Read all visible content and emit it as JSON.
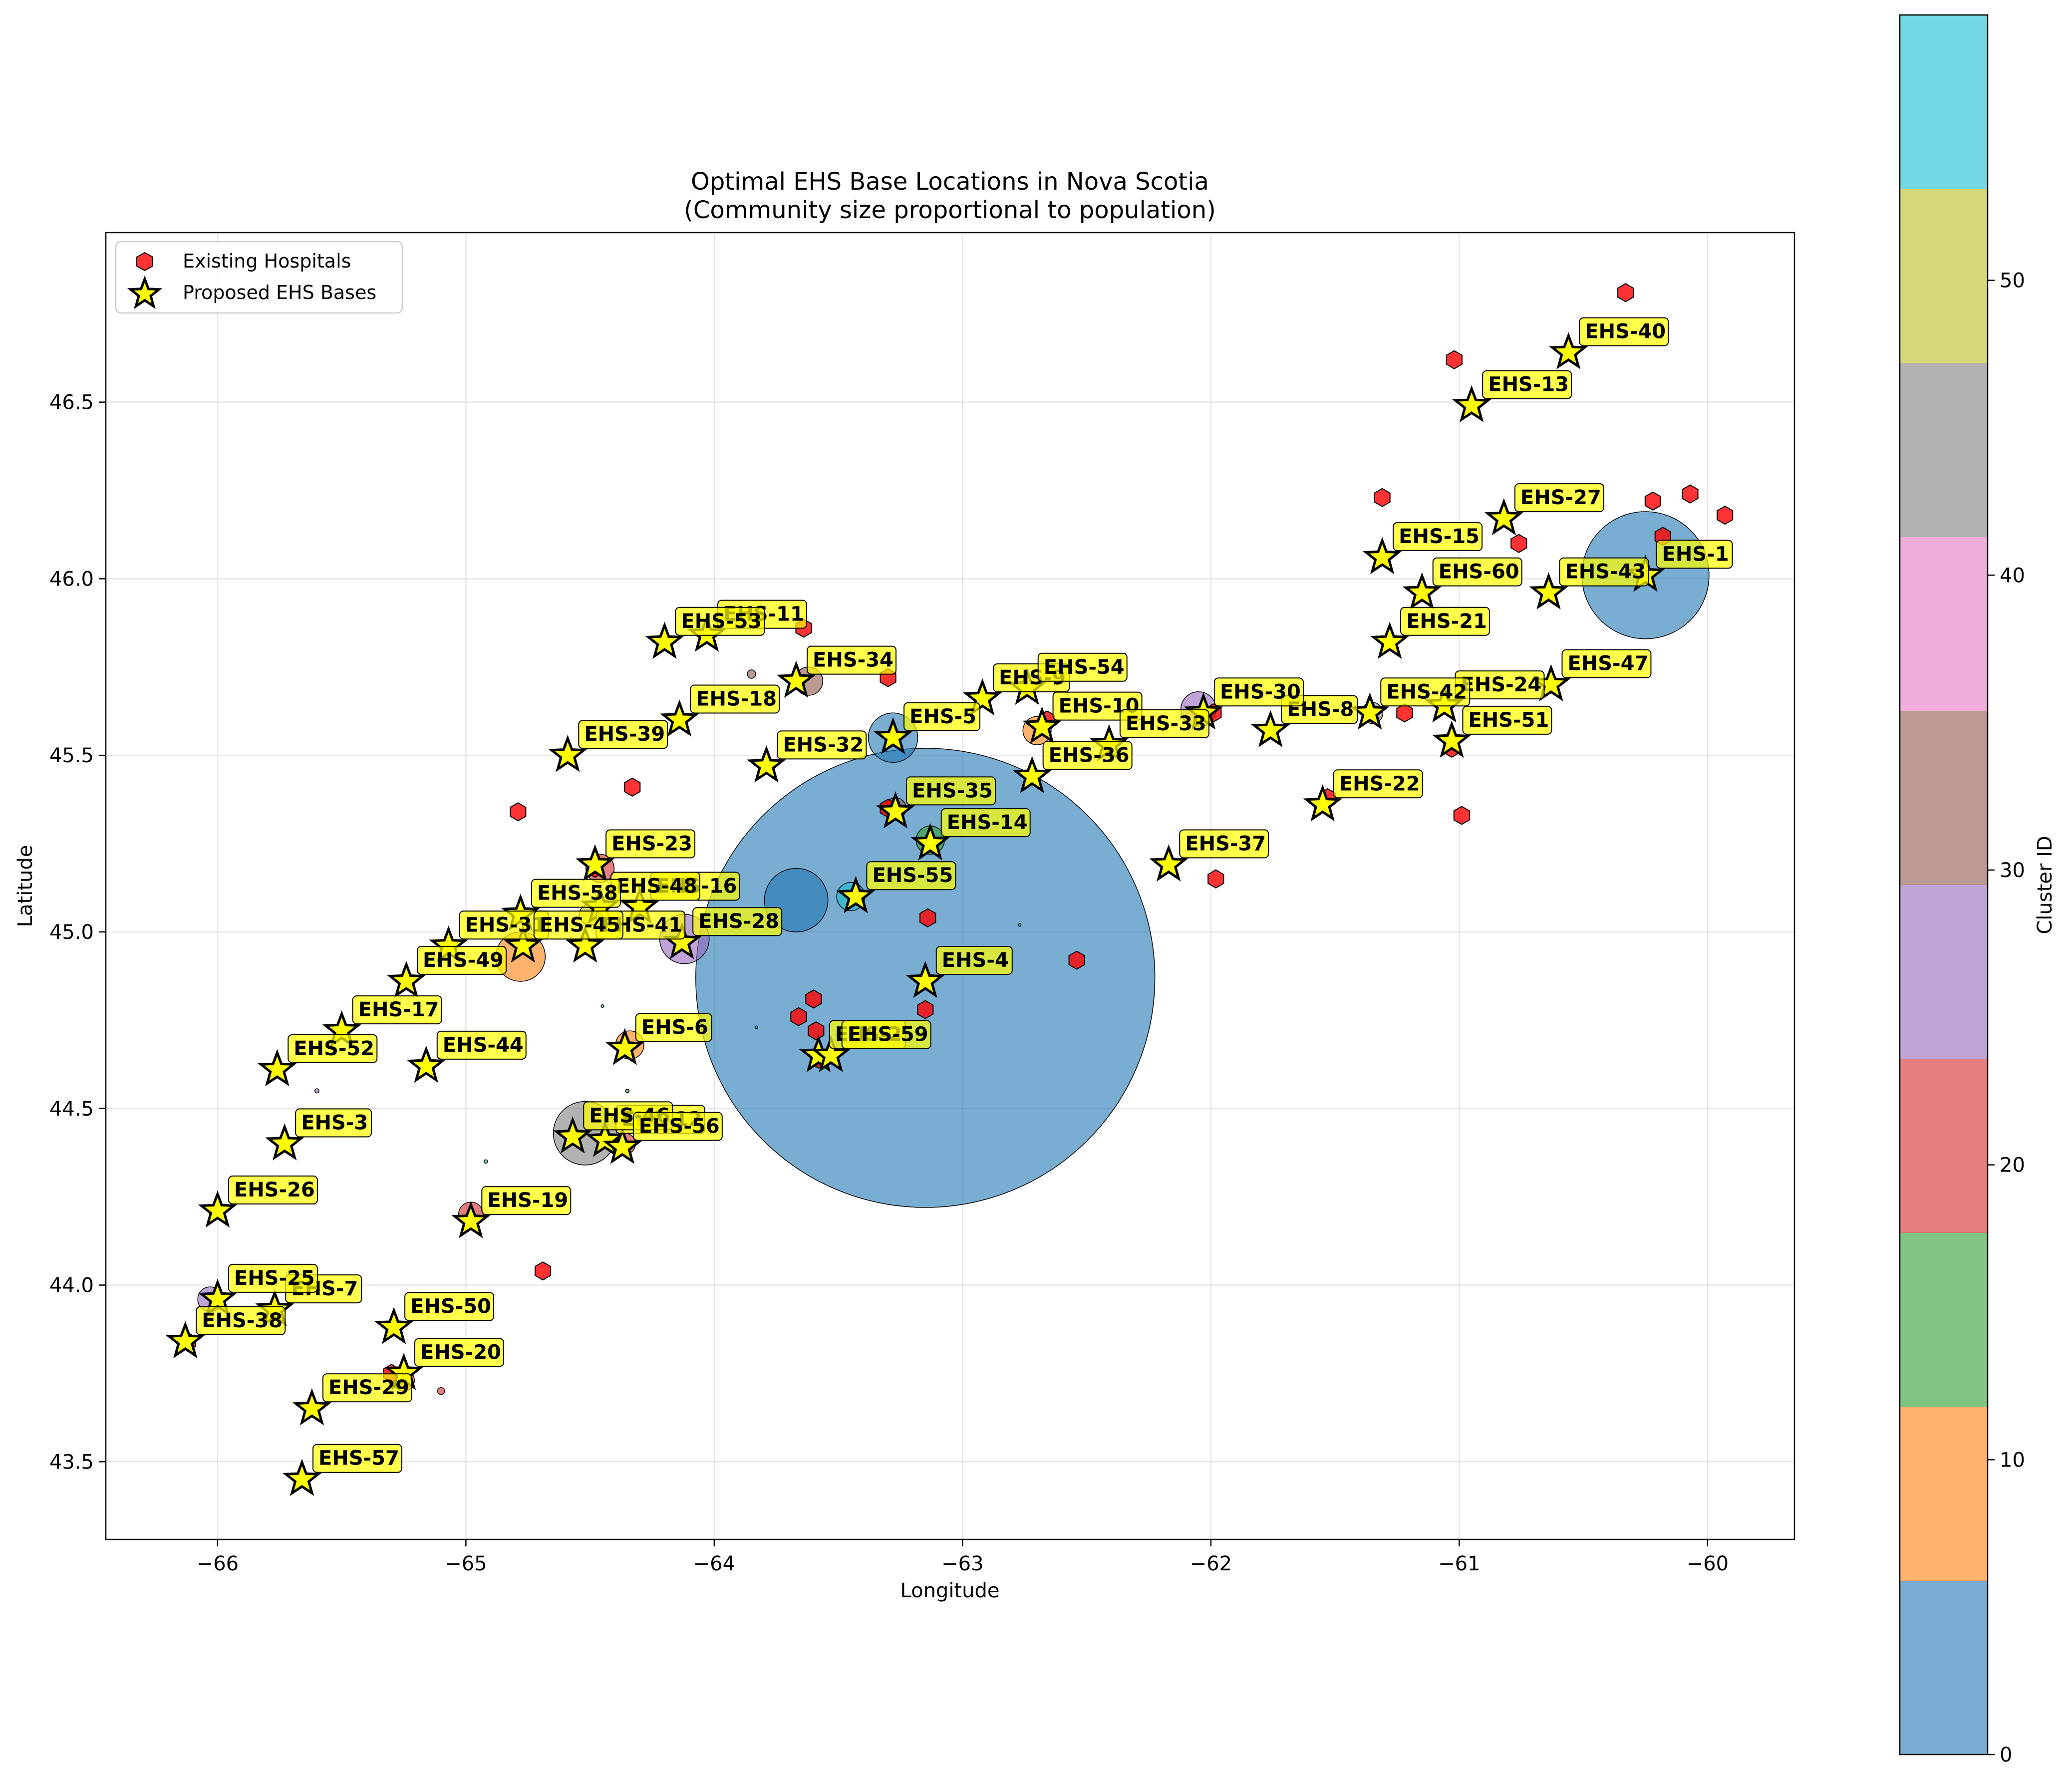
{
  "chart_data": {
    "type": "scatter",
    "title": "Optimal EHS Base Locations in Nova Scotia",
    "subtitle": "(Community size proportional to population)",
    "xlabel": "Longitude",
    "ylabel": "Latitude",
    "xlim": [
      -66.45,
      -59.65
    ],
    "ylim": [
      43.28,
      46.98
    ],
    "grid": true,
    "legend_position": "upper-left",
    "x_ticks": [
      {
        "value": -66,
        "label": "−66"
      },
      {
        "value": -65,
        "label": "−65"
      },
      {
        "value": -64,
        "label": "−64"
      },
      {
        "value": -63,
        "label": "−63"
      },
      {
        "value": -62,
        "label": "−62"
      },
      {
        "value": -61,
        "label": "−61"
      },
      {
        "value": -60,
        "label": "−60"
      }
    ],
    "y_ticks": [
      {
        "value": 43.5,
        "label": "43.5"
      },
      {
        "value": 44.0,
        "label": "44.0"
      },
      {
        "value": 44.5,
        "label": "44.5"
      },
      {
        "value": 45.0,
        "label": "45.0"
      },
      {
        "value": 45.5,
        "label": "45.5"
      },
      {
        "value": 46.0,
        "label": "46.0"
      },
      {
        "value": 46.5,
        "label": "46.5"
      }
    ],
    "legend": [
      {
        "label": "Existing Hospitals",
        "marker": "hexagon",
        "color": "#ff0000"
      },
      {
        "label": "Proposed EHS Bases",
        "marker": "star",
        "color": "#ffff00"
      }
    ],
    "colorbar": {
      "label": "Cluster ID",
      "min": 0,
      "max": 59,
      "ticks": [
        {
          "value": 0,
          "label": "0"
        },
        {
          "value": 10,
          "label": "10"
        },
        {
          "value": 20,
          "label": "20"
        },
        {
          "value": 30,
          "label": "30"
        },
        {
          "value": 40,
          "label": "40"
        },
        {
          "value": 50,
          "label": "50"
        }
      ],
      "colors": [
        "#1f77b4",
        "#ff7f0e",
        "#2ca02c",
        "#d62728",
        "#9467bd",
        "#8c564b",
        "#e377c2",
        "#7f7f7f",
        "#bcbd22",
        "#17becf"
      ],
      "alpha": 0.6
    },
    "communities": [
      {
        "lon": -63.15,
        "lat": 44.87,
        "r": 0.65,
        "cluster": 3
      },
      {
        "lon": -60.25,
        "lat": 46.01,
        "r": 0.18,
        "cluster": 0
      },
      {
        "lon": -63.67,
        "lat": 45.09,
        "r": 0.09,
        "cluster": 4
      },
      {
        "lon": -64.52,
        "lat": 44.43,
        "r": 0.09,
        "cluster": 44
      },
      {
        "lon": -64.12,
        "lat": 44.98,
        "r": 0.07,
        "cluster": 25
      },
      {
        "lon": -64.78,
        "lat": 44.93,
        "r": 0.07,
        "cluster": 9
      },
      {
        "lon": -63.28,
        "lat": 45.55,
        "r": 0.07,
        "cluster": 5
      },
      {
        "lon": -62.05,
        "lat": 45.63,
        "r": 0.05,
        "cluster": 28
      },
      {
        "lon": -63.62,
        "lat": 45.71,
        "r": 0.04,
        "cluster": 33
      },
      {
        "lon": -63.45,
        "lat": 45.1,
        "r": 0.04,
        "cluster": 55
      },
      {
        "lon": -63.13,
        "lat": 45.26,
        "r": 0.04,
        "cluster": 14
      },
      {
        "lon": -64.34,
        "lat": 44.68,
        "r": 0.04,
        "cluster": 6
      },
      {
        "lon": -62.7,
        "lat": 45.57,
        "r": 0.04,
        "cluster": 10
      },
      {
        "lon": -64.46,
        "lat": 45.18,
        "r": 0.04,
        "cluster": 23
      },
      {
        "lon": -64.98,
        "lat": 44.2,
        "r": 0.035,
        "cluster": 19
      },
      {
        "lon": -66.03,
        "lat": 43.96,
        "r": 0.035,
        "cluster": 25
      },
      {
        "lon": -63.27,
        "lat": 45.35,
        "r": 0.03,
        "cluster": 35
      },
      {
        "lon": -64.5,
        "lat": 45.05,
        "r": 0.03,
        "cluster": 48
      },
      {
        "lon": -64.36,
        "lat": 44.4,
        "r": 0.03,
        "cluster": 21
      },
      {
        "lon": -61.35,
        "lat": 45.62,
        "r": 0.03,
        "cluster": 42
      },
      {
        "lon": -65.25,
        "lat": 43.73,
        "r": 0.03,
        "cluster": 20
      },
      {
        "lon": -63.85,
        "lat": 45.73,
        "r": 0.012,
        "cluster": 30
      },
      {
        "lon": -65.1,
        "lat": 43.7,
        "r": 0.01,
        "cluster": 20
      },
      {
        "lon": -65.6,
        "lat": 44.55,
        "r": 0.006,
        "cluster": 28
      },
      {
        "lon": -64.92,
        "lat": 44.35,
        "r": 0.005,
        "cluster": 58
      },
      {
        "lon": -64.35,
        "lat": 44.55,
        "r": 0.005,
        "cluster": 14
      },
      {
        "lon": -63.83,
        "lat": 44.73,
        "r": 0.004,
        "cluster": 58
      },
      {
        "lon": -64.45,
        "lat": 44.79,
        "r": 0.004,
        "cluster": 58
      },
      {
        "lon": -62.77,
        "lat": 45.02,
        "r": 0.004,
        "cluster": 58
      }
    ],
    "hospitals": [
      {
        "lon": -60.33,
        "lat": 46.81
      },
      {
        "lon": -61.02,
        "lat": 46.62
      },
      {
        "lon": -61.31,
        "lat": 46.23
      },
      {
        "lon": -60.22,
        "lat": 46.22
      },
      {
        "lon": -60.07,
        "lat": 46.24
      },
      {
        "lon": -59.93,
        "lat": 46.18
      },
      {
        "lon": -60.76,
        "lat": 46.1
      },
      {
        "lon": -60.18,
        "lat": 46.12
      },
      {
        "lon": -63.64,
        "lat": 45.86
      },
      {
        "lon": -63.3,
        "lat": 45.72
      },
      {
        "lon": -61.22,
        "lat": 45.62
      },
      {
        "lon": -61.03,
        "lat": 45.52
      },
      {
        "lon": -60.99,
        "lat": 45.33
      },
      {
        "lon": -61.99,
        "lat": 45.62
      },
      {
        "lon": -62.66,
        "lat": 45.6
      },
      {
        "lon": -61.53,
        "lat": 45.38
      },
      {
        "lon": -64.79,
        "lat": 45.34
      },
      {
        "lon": -64.33,
        "lat": 45.41
      },
      {
        "lon": -63.3,
        "lat": 45.35
      },
      {
        "lon": -61.98,
        "lat": 45.15
      },
      {
        "lon": -63.14,
        "lat": 45.04
      },
      {
        "lon": -62.54,
        "lat": 44.92
      },
      {
        "lon": -63.6,
        "lat": 44.81
      },
      {
        "lon": -63.66,
        "lat": 44.76
      },
      {
        "lon": -63.59,
        "lat": 44.72
      },
      {
        "lon": -63.15,
        "lat": 44.78
      },
      {
        "lon": -63.58,
        "lat": 44.64
      },
      {
        "lon": -64.48,
        "lat": 45.18
      },
      {
        "lon": -64.69,
        "lat": 44.04
      },
      {
        "lon": -66.12,
        "lat": 43.84
      },
      {
        "lon": -65.3,
        "lat": 43.75
      }
    ],
    "bases": [
      {
        "label": "EHS-1",
        "lon": -60.25,
        "lat": 46.01
      },
      {
        "label": "EHS-2",
        "lon": -63.58,
        "lat": 44.65
      },
      {
        "label": "EHS-3",
        "lon": -65.73,
        "lat": 44.4
      },
      {
        "label": "EHS-4",
        "lon": -63.15,
        "lat": 44.86
      },
      {
        "label": "EHS-5",
        "lon": -63.28,
        "lat": 45.55
      },
      {
        "label": "EHS-6",
        "lon": -64.36,
        "lat": 44.67
      },
      {
        "label": "EHS-7",
        "lon": -65.77,
        "lat": 43.93
      },
      {
        "label": "EHS-8",
        "lon": -61.76,
        "lat": 45.57
      },
      {
        "label": "EHS-9",
        "lon": -62.92,
        "lat": 45.66
      },
      {
        "label": "EHS-10",
        "lon": -62.68,
        "lat": 45.58
      },
      {
        "label": "EHS-11",
        "lon": -64.03,
        "lat": 45.84
      },
      {
        "label": "EHS-12",
        "lon": -64.44,
        "lat": 44.41
      },
      {
        "label": "EHS-13",
        "lon": -60.95,
        "lat": 46.49
      },
      {
        "label": "EHS-14",
        "lon": -63.13,
        "lat": 45.25
      },
      {
        "label": "EHS-15",
        "lon": -61.31,
        "lat": 46.06
      },
      {
        "label": "EHS-16",
        "lon": -64.3,
        "lat": 45.07
      },
      {
        "label": "EHS-17",
        "lon": -65.5,
        "lat": 44.72
      },
      {
        "label": "EHS-18",
        "lon": -64.14,
        "lat": 45.6
      },
      {
        "label": "EHS-19",
        "lon": -64.98,
        "lat": 44.18
      },
      {
        "label": "EHS-20",
        "lon": -65.25,
        "lat": 43.75
      },
      {
        "label": "EHS-21",
        "lon": -61.28,
        "lat": 45.82
      },
      {
        "label": "EHS-22",
        "lon": -61.55,
        "lat": 45.36
      },
      {
        "label": "EHS-23",
        "lon": -64.48,
        "lat": 45.19
      },
      {
        "label": "EHS-24",
        "lon": -61.06,
        "lat": 45.64
      },
      {
        "label": "EHS-25",
        "lon": -66.0,
        "lat": 43.96
      },
      {
        "label": "EHS-26",
        "lon": -66.0,
        "lat": 44.21
      },
      {
        "label": "EHS-27",
        "lon": -60.82,
        "lat": 46.17
      },
      {
        "label": "EHS-28",
        "lon": -64.13,
        "lat": 44.97
      },
      {
        "label": "EHS-29",
        "lon": -65.62,
        "lat": 43.65
      },
      {
        "label": "EHS-30",
        "lon": -62.03,
        "lat": 45.62
      },
      {
        "label": "EHS-31",
        "lon": -65.07,
        "lat": 44.96
      },
      {
        "label": "EHS-32",
        "lon": -63.79,
        "lat": 45.47
      },
      {
        "label": "EHS-33",
        "lon": -62.41,
        "lat": 45.53
      },
      {
        "label": "EHS-34",
        "lon": -63.67,
        "lat": 45.71
      },
      {
        "label": "EHS-35",
        "lon": -63.27,
        "lat": 45.34
      },
      {
        "label": "EHS-36",
        "lon": -62.72,
        "lat": 45.44
      },
      {
        "label": "EHS-37",
        "lon": -62.17,
        "lat": 45.19
      },
      {
        "label": "EHS-38",
        "lon": -66.13,
        "lat": 43.84
      },
      {
        "label": "EHS-39",
        "lon": -64.59,
        "lat": 45.5
      },
      {
        "label": "EHS-40",
        "lon": -60.56,
        "lat": 46.64
      },
      {
        "label": "EHS-41",
        "lon": -64.52,
        "lat": 44.96
      },
      {
        "label": "EHS-42",
        "lon": -61.36,
        "lat": 45.62
      },
      {
        "label": "EHS-43",
        "lon": -60.64,
        "lat": 45.96
      },
      {
        "label": "EHS-44",
        "lon": -65.16,
        "lat": 44.62
      },
      {
        "label": "EHS-45",
        "lon": -64.77,
        "lat": 44.96
      },
      {
        "label": "EHS-46",
        "lon": -64.57,
        "lat": 44.42
      },
      {
        "label": "EHS-47",
        "lon": -60.63,
        "lat": 45.7
      },
      {
        "label": "EHS-48",
        "lon": -64.46,
        "lat": 45.07
      },
      {
        "label": "EHS-49",
        "lon": -65.24,
        "lat": 44.86
      },
      {
        "label": "EHS-50",
        "lon": -65.29,
        "lat": 43.88
      },
      {
        "label": "EHS-51",
        "lon": -61.03,
        "lat": 45.54
      },
      {
        "label": "EHS-52",
        "lon": -65.76,
        "lat": 44.61
      },
      {
        "label": "EHS-53",
        "lon": -64.2,
        "lat": 45.82
      },
      {
        "label": "EHS-54",
        "lon": -62.74,
        "lat": 45.69
      },
      {
        "label": "EHS-55",
        "lon": -63.43,
        "lat": 45.1
      },
      {
        "label": "EHS-56",
        "lon": -64.37,
        "lat": 44.39
      },
      {
        "label": "EHS-57",
        "lon": -65.66,
        "lat": 43.45
      },
      {
        "label": "EHS-58",
        "lon": -64.78,
        "lat": 45.05
      },
      {
        "label": "EHS-59",
        "lon": -63.53,
        "lat": 44.65
      },
      {
        "label": "EHS-60",
        "lon": -61.15,
        "lat": 45.96
      }
    ]
  }
}
